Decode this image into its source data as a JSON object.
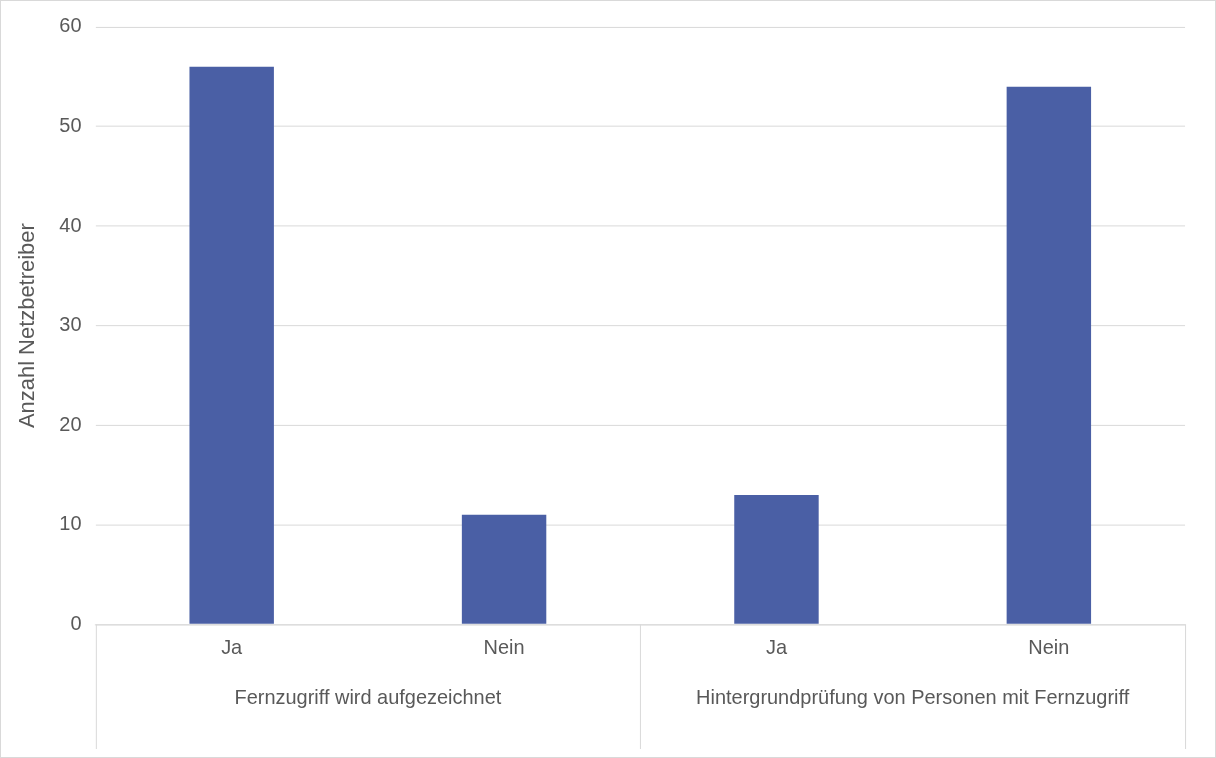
{
  "chart_data": {
    "type": "bar",
    "ylabel": "Anzahl Netzbetreiber",
    "categories": [
      "Ja",
      "Nein",
      "Ja",
      "Nein"
    ],
    "values": [
      56,
      11,
      13,
      54
    ],
    "color": "#4a5fa5",
    "ylim": [
      0,
      60
    ],
    "yticks": [
      0,
      10,
      20,
      30,
      40,
      50,
      60
    ],
    "grid": "y",
    "legend": false,
    "annotations": [
      "Fernzugriff wird aufgezeichnet",
      "Hintergrundprüfung von Personen mit Fernzugriff"
    ]
  }
}
